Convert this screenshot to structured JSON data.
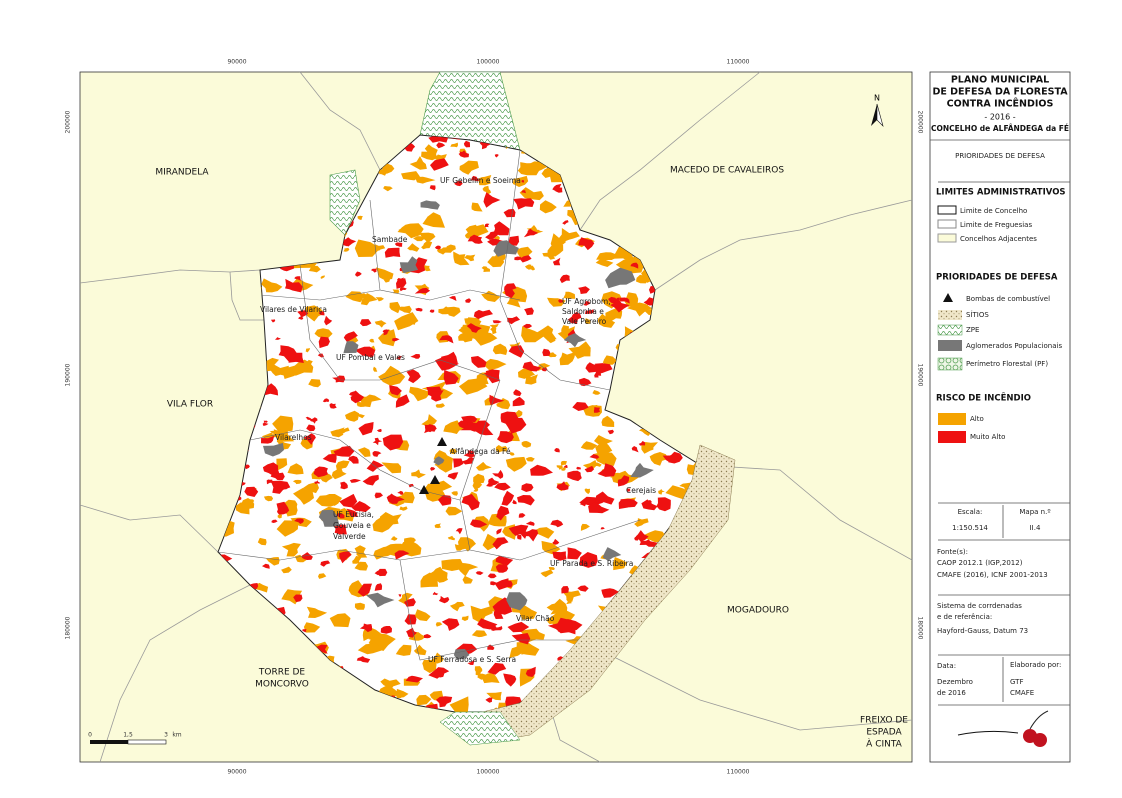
{
  "coordinates": {
    "x": [
      "90000",
      "100000",
      "110000"
    ],
    "y": [
      "200000",
      "190000",
      "180000"
    ]
  },
  "north": "N",
  "scale_bar": [
    "0",
    "1,5",
    "3",
    "km"
  ],
  "neighbors": [
    "MIRANDELA",
    "MACEDO DE CAVALEIROS",
    "VILA FLOR",
    "MOGADOURO",
    "TORRE DE",
    "MONCORVO",
    "FREIXO DE",
    "ESPADA",
    "À CINTA"
  ],
  "places": [
    "UF Gebelim e Soeima",
    "Sambade",
    "Vilares de Vilariça",
    "UF Agrobom,",
    "Saldonha e",
    "Vale Pereiro",
    "UF Pombal e Vales",
    "Vilarelhos",
    "Alfândega da Fé",
    "Cerejais",
    "UF Eucisia,",
    "Gouveia e",
    "Valverde",
    "UF Parada e S. Ribeira",
    "Vilar Chão",
    "UF Ferradosa e S. Serra"
  ],
  "legend": {
    "title": [
      "PLANO MUNICIPAL",
      "DE DEFESA DA FLORESTA",
      "CONTRA INCÊNDIOS",
      "- 2016 -",
      "CONCELHO de ALFÂNDEGA da FÉ"
    ],
    "subtitle": "PRIORIDADES DE DEFESA",
    "admin_title": "LIMITES ADMINISTRATIVOS",
    "admin_items": [
      "Limite de Concelho",
      "Limite de Freguesias",
      "Concelhos Adjacentes"
    ],
    "priority_title": "PRIORIDADES DE DEFESA",
    "priority_items": [
      "Bombas de combustível",
      "SÍTIOS",
      "ZPE",
      "Aglomerados Populacionais",
      "Perímetro Florestal (PF)"
    ],
    "risk_title": "RISCO DE INCÊNDIO",
    "risk_items": [
      "Alto",
      "Muito Alto"
    ],
    "scale_label": "Escala:",
    "scale": "1:150.514",
    "map_label": "Mapa n.º",
    "map_number": "II.4",
    "sources_label": "Fonte(s):",
    "sources": [
      "CAOP 2012.1 (IGP,2012)",
      "CMAFE (2016), ICNF 2001-2013"
    ],
    "crs_label": [
      "Sistema de corrdenadas",
      "e de referência:"
    ],
    "crs": "Hayford-Gauss, Datum 73",
    "date_label": "Data:",
    "date": [
      "Dezembro",
      "de 2016"
    ],
    "author_label": "Elaborado por:",
    "author": [
      "GTF",
      "CMAFE"
    ]
  }
}
